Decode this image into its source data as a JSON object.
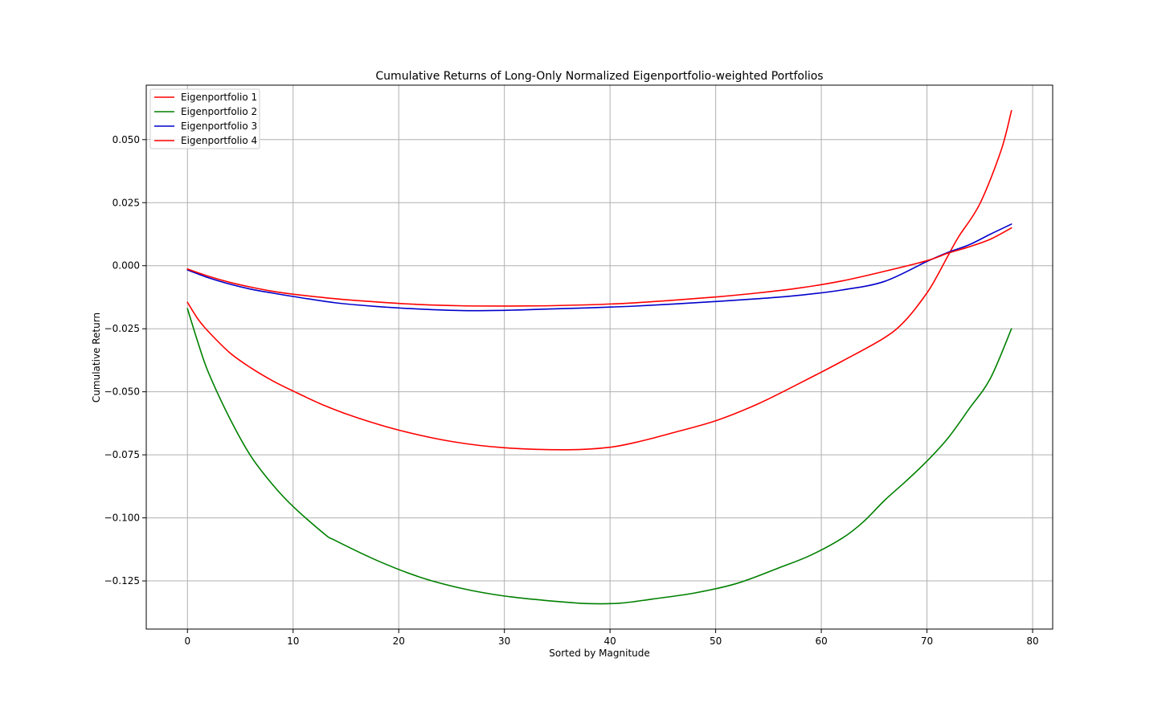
{
  "chart_data": {
    "type": "line",
    "title": "Cumulative Returns of Long-Only Normalized Eigenportfolio-weighted Portfolios",
    "xlabel": "Sorted by Magnitude",
    "ylabel": "Cumulative Return",
    "xlim": [
      -3.9,
      81.9
    ],
    "ylim": [
      -0.1441,
      0.0716
    ],
    "xticks": [
      0,
      10,
      20,
      30,
      40,
      50,
      60,
      70,
      80
    ],
    "xtick_labels": [
      "0",
      "10",
      "20",
      "30",
      "40",
      "50",
      "60",
      "70",
      "80"
    ],
    "yticks": [
      -0.125,
      -0.1,
      -0.075,
      -0.05,
      -0.025,
      0.0,
      0.025,
      0.05
    ],
    "ytick_labels": [
      "−0.125",
      "−0.100",
      "−0.075",
      "−0.050",
      "−0.025",
      "0.000",
      "0.025",
      "0.050"
    ],
    "grid": true,
    "legend_position": "top-left",
    "series": [
      {
        "name": "Eigenportfolio 1",
        "color": "#ff0000",
        "x": [
          0,
          1,
          2,
          4,
          6,
          8,
          10,
          13,
          16,
          20,
          25,
          30,
          36,
          40,
          43,
          46,
          50,
          54,
          58,
          62,
          66,
          68,
          70,
          71,
          72,
          73,
          75,
          77,
          78
        ],
        "y": [
          -0.0145,
          -0.0212,
          -0.0262,
          -0.0345,
          -0.0405,
          -0.0455,
          -0.0497,
          -0.0555,
          -0.0602,
          -0.0652,
          -0.0697,
          -0.0722,
          -0.073,
          -0.072,
          -0.0695,
          -0.0662,
          -0.0615,
          -0.0548,
          -0.0465,
          -0.0378,
          -0.0285,
          -0.0215,
          -0.0108,
          -0.0038,
          0.004,
          0.0115,
          0.0245,
          0.0455,
          0.0615
        ]
      },
      {
        "name": "Eigenportfolio 2",
        "color": "#008000",
        "x": [
          0,
          1,
          2,
          4,
          6,
          8,
          10,
          13,
          14,
          18,
          22,
          26,
          30,
          34,
          38,
          41,
          44,
          48,
          52,
          56,
          59,
          62,
          64,
          66,
          68,
          70,
          72,
          74,
          76,
          78
        ],
        "y": [
          -0.017,
          -0.0305,
          -0.0425,
          -0.0605,
          -0.0755,
          -0.0865,
          -0.0955,
          -0.1065,
          -0.109,
          -0.117,
          -0.1235,
          -0.128,
          -0.131,
          -0.1328,
          -0.134,
          -0.1338,
          -0.1322,
          -0.1298,
          -0.126,
          -0.1198,
          -0.1148,
          -0.108,
          -0.1015,
          -0.093,
          -0.0855,
          -0.0775,
          -0.0683,
          -0.0567,
          -0.0447,
          -0.025
        ]
      },
      {
        "name": "Eigenportfolio 3",
        "color": "#0000cc",
        "x": [
          0,
          2,
          4,
          6,
          8,
          10,
          14,
          18,
          22,
          26,
          30,
          34,
          38,
          42,
          46,
          50,
          54,
          58,
          62,
          66,
          70,
          72,
          74,
          76,
          78
        ],
        "y": [
          -0.0017,
          -0.0048,
          -0.0073,
          -0.0093,
          -0.0108,
          -0.0122,
          -0.0147,
          -0.0162,
          -0.0172,
          -0.0178,
          -0.0177,
          -0.0172,
          -0.0167,
          -0.0161,
          -0.0152,
          -0.0142,
          -0.0131,
          -0.0117,
          -0.0096,
          -0.0062,
          0.0017,
          0.0053,
          0.0083,
          0.0125,
          0.0165
        ]
      },
      {
        "name": "Eigenportfolio 4",
        "color": "#ff0000",
        "x": [
          0,
          2,
          4,
          6,
          8,
          10,
          14,
          18,
          22,
          26,
          30,
          34,
          38,
          42,
          46,
          50,
          54,
          58,
          62,
          66,
          70,
          72,
          74,
          76,
          78
        ],
        "y": [
          -0.0013,
          -0.0042,
          -0.0066,
          -0.0085,
          -0.0101,
          -0.0113,
          -0.0131,
          -0.0144,
          -0.0154,
          -0.0159,
          -0.016,
          -0.0159,
          -0.0155,
          -0.0148,
          -0.0137,
          -0.0124,
          -0.0108,
          -0.0088,
          -0.006,
          -0.0022,
          0.002,
          0.005,
          0.0075,
          0.0105,
          0.015
        ]
      }
    ]
  }
}
